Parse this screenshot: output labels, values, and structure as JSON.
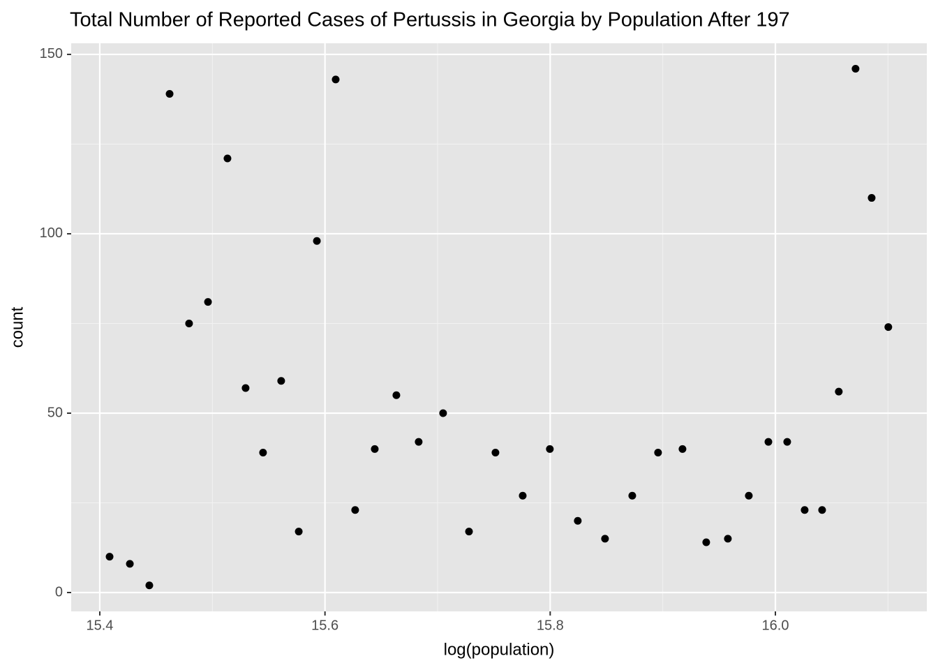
{
  "chart_data": {
    "type": "scatter",
    "title": "Total Number of Reported Cases of Pertussis in Georgia by Population After 197",
    "x_label": "log(population)",
    "y_label": "count",
    "color": "#000000",
    "grid": true,
    "xlim": [
      15.3746,
      16.1345
    ],
    "ylim": [
      -5.25,
      153.1
    ],
    "xticks": [
      15.4,
      15.6,
      15.8,
      {
        "value": 16,
        "label": "16.0"
      }
    ],
    "yticks": [
      0,
      50,
      100,
      150
    ],
    "x": [
      15.4087,
      15.4267,
      15.444,
      15.462,
      15.4793,
      15.4961,
      15.5134,
      15.5295,
      15.545,
      15.5611,
      15.5767,
      15.5928,
      15.6095,
      15.6268,
      15.6442,
      15.6634,
      15.6832,
      15.7049,
      15.7279,
      15.7514,
      15.7756,
      15.7997,
      15.8245,
      15.8487,
      15.8729,
      15.8958,
      15.9175,
      15.9386,
      15.9578,
      15.9764,
      15.9938,
      16.0105,
      16.026,
      16.0415,
      16.0563,
      16.0712,
      16.0855,
      16.1003
    ],
    "values": [
      10,
      8,
      2,
      139,
      75,
      81,
      121,
      57,
      39,
      59,
      17,
      98,
      143,
      23,
      40,
      55,
      42,
      50,
      17,
      39,
      27,
      40,
      20,
      15,
      27,
      39,
      40,
      14,
      15,
      27,
      42,
      42,
      23,
      23,
      56,
      146,
      110,
      74
    ]
  }
}
